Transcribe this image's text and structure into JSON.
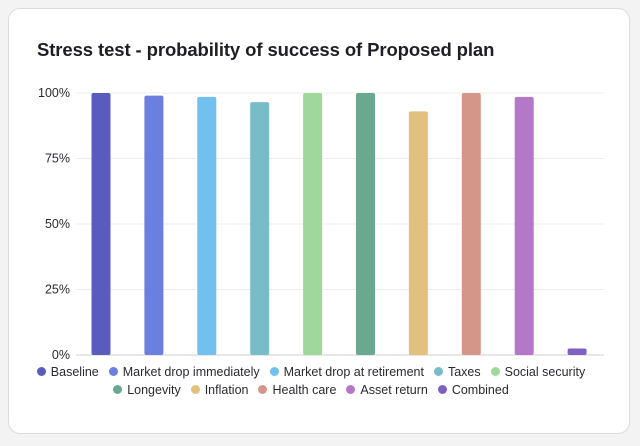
{
  "chart_data": {
    "type": "bar",
    "title": "Stress test - probability of success of Proposed plan",
    "xlabel": "",
    "ylabel": "",
    "ylim": [
      0,
      100
    ],
    "y_ticks": [
      "0%",
      "25%",
      "50%",
      "75%",
      "100%"
    ],
    "y_tick_values": [
      0,
      25,
      50,
      75,
      100
    ],
    "grid": true,
    "legend_position": "bottom",
    "series": [
      {
        "name": "Baseline",
        "value": 100,
        "color": "#5b5bbf"
      },
      {
        "name": "Market drop immediately",
        "value": 99,
        "color": "#6b7fe0"
      },
      {
        "name": "Market drop at retirement",
        "value": 98.5,
        "color": "#72c0ee"
      },
      {
        "name": "Taxes",
        "value": 96.5,
        "color": "#77bcc6"
      },
      {
        "name": "Social security",
        "value": 100,
        "color": "#9fd89a"
      },
      {
        "name": "Longevity",
        "value": 100,
        "color": "#6aa890"
      },
      {
        "name": "Inflation",
        "value": 93,
        "color": "#e2c17f"
      },
      {
        "name": "Health care",
        "value": 100,
        "color": "#d5968a"
      },
      {
        "name": "Asset return",
        "value": 98.5,
        "color": "#b378c8"
      },
      {
        "name": "Combined",
        "value": 2.5,
        "color": "#7e60c0"
      }
    ]
  }
}
